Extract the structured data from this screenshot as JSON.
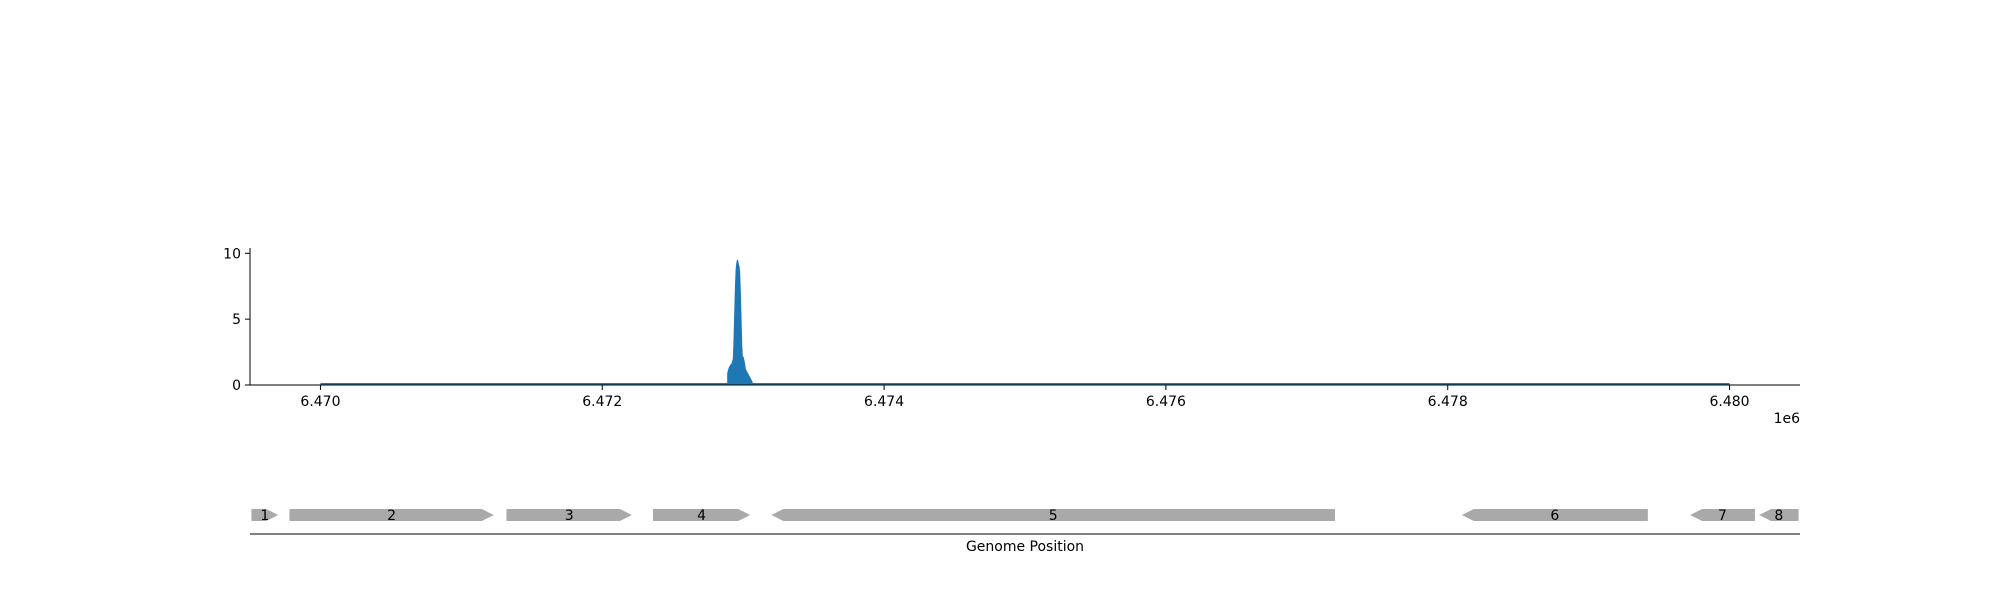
{
  "chart_data": [
    {
      "type": "area",
      "title": "",
      "xlabel": "",
      "ylabel": "",
      "x_offset_label": "1e6",
      "xlim": [
        6469500,
        6480500
      ],
      "ylim": [
        0,
        10.4
      ],
      "x_ticks": [
        6470000,
        6472000,
        6474000,
        6476000,
        6478000,
        6480000
      ],
      "x_tick_labels": [
        "6.470",
        "6.472",
        "6.474",
        "6.476",
        "6.478",
        "6.480"
      ],
      "y_ticks": [
        0,
        5,
        10
      ],
      "y_tick_labels": [
        "0",
        "5",
        "10"
      ],
      "grid": false,
      "color": "#1f77b4",
      "baseline_range": [
        6470000,
        6480000
      ],
      "series": [
        {
          "x": [
            6472890,
            6472900,
            6472910,
            6472920,
            6472930,
            6472935,
            6472940,
            6472945,
            6472950,
            6472955,
            6472960,
            6472965,
            6472970,
            6472975,
            6472980,
            6472985,
            6472990,
            6472995,
            6473000,
            6473005,
            6473010,
            6473015,
            6473020,
            6473025,
            6473030,
            6473040,
            6473050,
            6473060,
            6473070
          ],
          "y": [
            0.9,
            1.3,
            1.5,
            1.6,
            2.0,
            3.5,
            5.5,
            7.5,
            8.8,
            9.3,
            9.5,
            9.2,
            9.0,
            8.6,
            7.0,
            5.0,
            3.0,
            2.0,
            2.1,
            1.9,
            1.6,
            1.2,
            1.1,
            1.0,
            0.9,
            0.7,
            0.5,
            0.3,
            0.0
          ]
        }
      ]
    },
    {
      "type": "gene_map",
      "xlabel": "Genome Position",
      "xlim": [
        6469500,
        6480500
      ],
      "genes": [
        {
          "label": "1",
          "start": 6469510,
          "end": 6469700,
          "strand": "+"
        },
        {
          "label": "2",
          "start": 6469780,
          "end": 6471230,
          "strand": "+"
        },
        {
          "label": "3",
          "start": 6471320,
          "end": 6472210,
          "strand": "+"
        },
        {
          "label": "4",
          "start": 6472360,
          "end": 6473050,
          "strand": "+"
        },
        {
          "label": "5",
          "start": 6473200,
          "end": 6477200,
          "strand": "-"
        },
        {
          "label": "6",
          "start": 6478100,
          "end": 6479420,
          "strand": "-"
        },
        {
          "label": "7",
          "start": 6479720,
          "end": 6480180,
          "strand": "-"
        },
        {
          "label": "8",
          "start": 6480210,
          "end": 6480490,
          "strand": "-"
        }
      ],
      "gene_color": "#a9a9a9"
    }
  ]
}
